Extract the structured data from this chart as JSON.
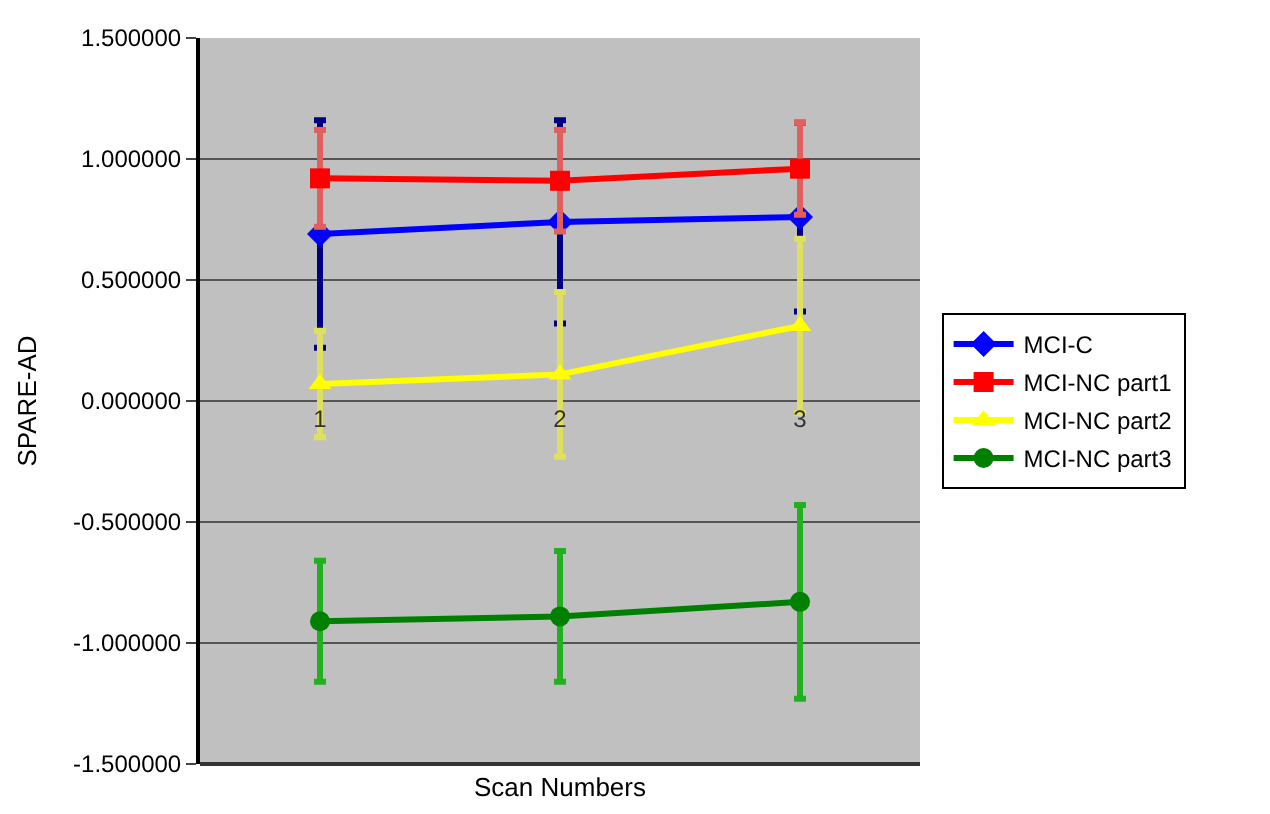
{
  "chart_data": {
    "type": "line",
    "xlabel": "Scan Numbers",
    "ylabel": "SPARE-AD",
    "categories": [
      "1",
      "2",
      "3"
    ],
    "ylim": [
      -1.5,
      1.5
    ],
    "yticks": [
      {
        "value": -1.5,
        "label": "-1.500000"
      },
      {
        "value": -1.0,
        "label": "-1.000000"
      },
      {
        "value": -0.5,
        "label": "-0.500000"
      },
      {
        "value": 0,
        "label": "0.000000"
      },
      {
        "value": 0.5,
        "label": "0.500000"
      },
      {
        "value": 1.0,
        "label": "1.000000"
      },
      {
        "value": 1.5,
        "label": "1.500000"
      }
    ],
    "grid": "y",
    "legend": "right",
    "series": [
      {
        "name": "MCI-C",
        "color": "#0000ff",
        "marker": "diamond",
        "values": [
          0.69,
          0.74,
          0.76
        ],
        "errors": [
          0.47,
          0.42,
          0.39
        ]
      },
      {
        "name": "MCI-NC part1",
        "color": "#ff0000",
        "marker": "square",
        "values": [
          0.92,
          0.91,
          0.96
        ],
        "errors": [
          0.2,
          0.21,
          0.19
        ]
      },
      {
        "name": "MCI-NC part2",
        "color": "#ffff00",
        "marker": "triangle",
        "values": [
          0.07,
          0.11,
          0.31
        ],
        "errors": [
          0.22,
          0.34,
          0.36
        ]
      },
      {
        "name": "MCI-NC part3",
        "color": "#008000",
        "marker": "circle",
        "values": [
          -0.91,
          -0.89,
          -0.83
        ],
        "errors": [
          0.25,
          0.27,
          0.4
        ]
      }
    ]
  }
}
